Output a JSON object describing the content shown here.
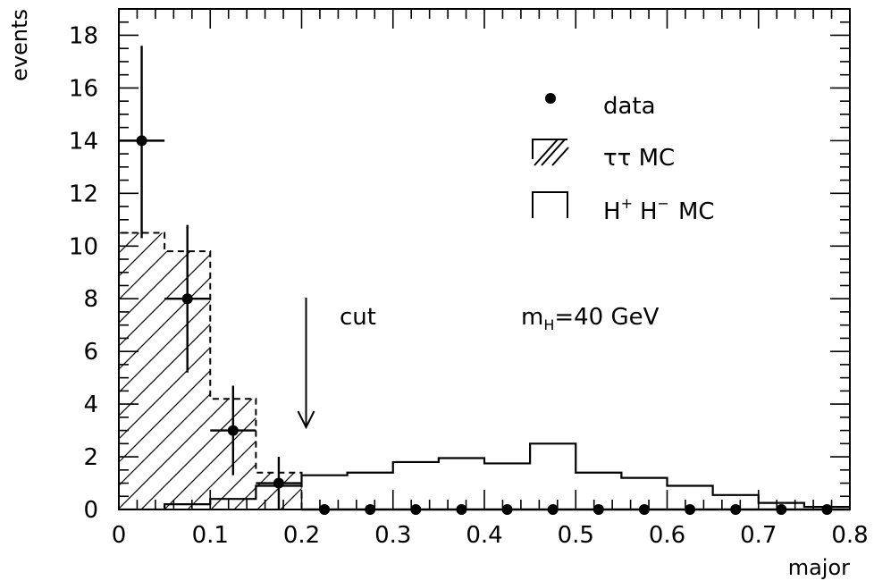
{
  "chart_data": {
    "type": "bar",
    "xlabel": "major",
    "ylabel": "events",
    "xlim": [
      0,
      0.8
    ],
    "ylim": [
      0,
      19
    ],
    "x_ticks": [
      "0",
      "0.1",
      "0.2",
      "0.3",
      "0.4",
      "0.5",
      "0.6",
      "0.7",
      "0.8"
    ],
    "y_ticks": [
      "0",
      "2",
      "4",
      "6",
      "8",
      "10",
      "12",
      "14",
      "16",
      "18"
    ],
    "bin_edges": [
      0,
      0.05,
      0.1,
      0.15,
      0.2,
      0.25,
      0.3,
      0.35,
      0.4,
      0.45,
      0.5,
      0.55,
      0.6,
      0.65,
      0.7,
      0.75,
      0.8
    ],
    "series": [
      {
        "name": "data",
        "style": "points",
        "x": [
          0.025,
          0.075,
          0.125,
          0.175,
          0.225,
          0.275,
          0.325,
          0.375,
          0.425,
          0.475,
          0.525,
          0.575,
          0.625,
          0.675,
          0.725,
          0.775
        ],
        "values": [
          14,
          8,
          3,
          1,
          0,
          0,
          0,
          0,
          0,
          0,
          0,
          0,
          0,
          0,
          0,
          0
        ],
        "yerr_low": [
          3.7,
          2.8,
          1.7,
          1.0,
          0,
          0,
          0,
          0,
          0,
          0,
          0,
          0,
          0,
          0,
          0,
          0
        ],
        "yerr_high": [
          3.6,
          2.8,
          1.7,
          1.0,
          0,
          0,
          0,
          0,
          0,
          0,
          0,
          0,
          0,
          0,
          0,
          0
        ]
      },
      {
        "name": "ττ MC",
        "style": "hatched-dashed-histogram",
        "values": [
          10.5,
          9.8,
          4.2,
          1.4,
          0,
          0,
          0,
          0,
          0,
          0,
          0,
          0,
          0,
          0,
          0,
          0
        ]
      },
      {
        "name": "H⁺ H⁻ MC",
        "style": "solid-histogram",
        "values": [
          0,
          0.2,
          0.4,
          0.9,
          1.3,
          1.4,
          1.8,
          1.95,
          1.75,
          2.5,
          1.4,
          1.2,
          0.9,
          0.55,
          0.25,
          0.1
        ]
      }
    ],
    "legend": {
      "position": "top-right",
      "data_label": "data",
      "tautau_label": "ττ MC",
      "hh_label_h1": "H",
      "hh_label_sup1": "+",
      "hh_label_h2": "H",
      "hh_label_sup2": "−",
      "hh_label_mc": "MC"
    },
    "annotations": {
      "cut_label": "cut",
      "cut_x": 0.2,
      "mass_m": "m",
      "mass_sub": "H",
      "mass_value": "=40 GeV"
    }
  }
}
